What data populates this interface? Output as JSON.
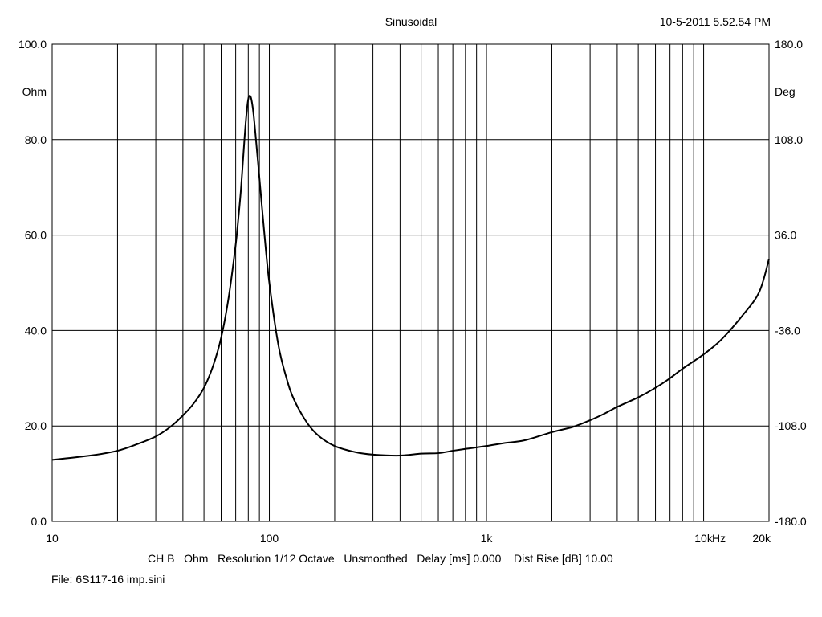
{
  "header": {
    "title": "Sinusoidal",
    "timestamp": "10-5-2011 5.52.54 PM"
  },
  "footer": {
    "settings": "CH B   Ohm   Resolution 1/12 Octave   Unsmoothed   Delay [ms] 0.000    Dist Rise [dB] 10.00",
    "file": "File: 6S117-16 imp.sini"
  },
  "chart_data": {
    "type": "line",
    "title": "Sinusoidal",
    "x_scale": "log",
    "xlim": [
      10,
      20000
    ],
    "xlabel": "Hz",
    "x_ticks": [
      {
        "value": 10,
        "label": "10"
      },
      {
        "value": 100,
        "label": "100"
      },
      {
        "value": 1000,
        "label": "1k"
      },
      {
        "value": 10000,
        "label": "10k"
      },
      {
        "value": 20000,
        "label": "20k"
      }
    ],
    "x_gridlines": [
      20,
      30,
      40,
      50,
      60,
      70,
      80,
      90,
      100,
      200,
      300,
      400,
      500,
      600,
      700,
      800,
      900,
      1000,
      2000,
      3000,
      4000,
      5000,
      6000,
      7000,
      8000,
      9000,
      10000,
      20000
    ],
    "ylim": [
      0,
      100
    ],
    "ylabel": "Ohm",
    "y_ticks": [
      "0.0",
      "20.0",
      "40.0",
      "60.0",
      "80.0",
      "100.0"
    ],
    "y2lim": [
      -180,
      180
    ],
    "y2label": "Deg",
    "y2_ticks": [
      "-180.0",
      "-108.0",
      "-36.0",
      "36.0",
      "108.0",
      "180.0"
    ],
    "grid": true,
    "series": [
      {
        "name": "",
        "color": "#000000",
        "x": [
          10,
          15,
          20,
          25,
          30,
          35,
          40,
          45,
          50,
          55,
          60,
          65,
          70,
          72,
          74,
          76,
          78,
          80,
          82,
          84,
          86,
          90,
          95,
          100,
          110,
          120,
          130,
          150,
          170,
          200,
          250,
          300,
          400,
          500,
          600,
          700,
          800,
          1000,
          1200,
          1500,
          2000,
          2500,
          3000,
          3500,
          4000,
          5000,
          6000,
          7000,
          8000,
          10000,
          12000,
          15000,
          18000,
          20000
        ],
        "y": [
          12.9,
          13.8,
          14.8,
          16.3,
          17.8,
          19.8,
          22.2,
          24.8,
          28.0,
          32.5,
          38.5,
          47.0,
          58.0,
          63.5,
          69.5,
          77.0,
          84.0,
          88.5,
          89.0,
          86.5,
          82.0,
          72.0,
          60.0,
          50.0,
          37.0,
          30.0,
          25.5,
          20.5,
          17.8,
          15.8,
          14.5,
          14.0,
          13.8,
          14.2,
          14.3,
          14.8,
          15.2,
          15.8,
          16.4,
          17.0,
          18.7,
          19.8,
          21.2,
          22.6,
          24.0,
          26.0,
          28.0,
          30.0,
          32.0,
          35.0,
          38.0,
          43.0,
          48.0,
          55.0
        ]
      }
    ]
  }
}
